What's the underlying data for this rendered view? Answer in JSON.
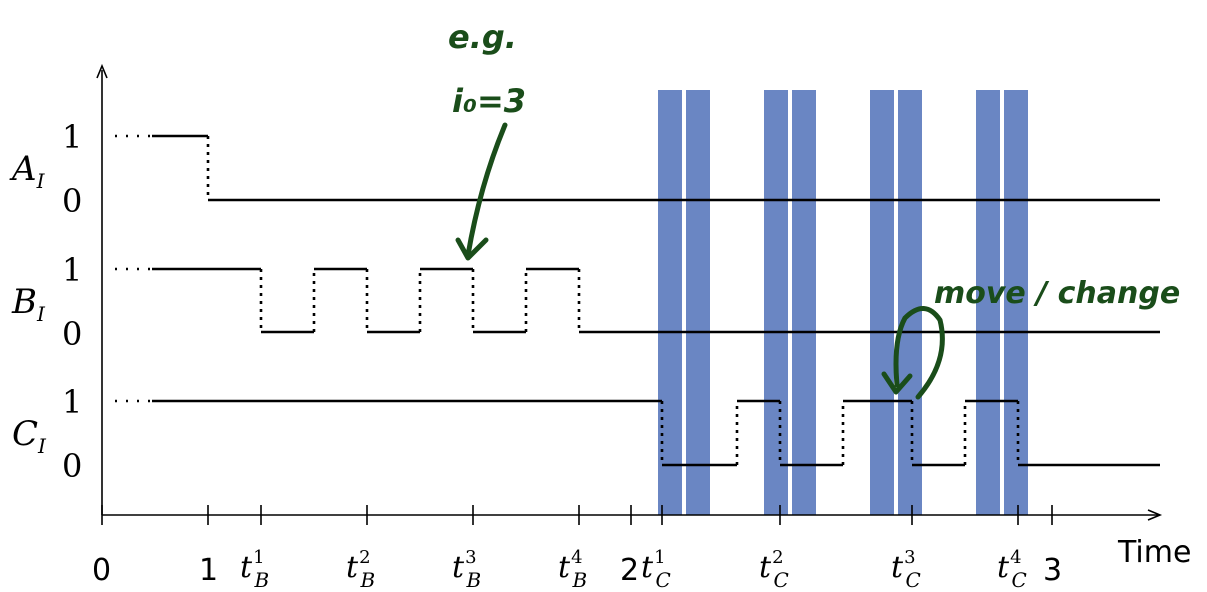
{
  "axis": {
    "x_label": "Time",
    "origin_label": "0",
    "tick_labels": [
      {
        "id": "one",
        "text": "1"
      },
      {
        "id": "tb1",
        "base": "t",
        "sub": "B",
        "sup": "1"
      },
      {
        "id": "tb2",
        "base": "t",
        "sub": "B",
        "sup": "2"
      },
      {
        "id": "tb3",
        "base": "t",
        "sub": "B",
        "sup": "3"
      },
      {
        "id": "tb4",
        "base": "t",
        "sub": "B",
        "sup": "4"
      },
      {
        "id": "two",
        "text": "2"
      },
      {
        "id": "tc1",
        "base": "t",
        "sub": "C",
        "sup": "1"
      },
      {
        "id": "tc2",
        "base": "t",
        "sub": "C",
        "sup": "2"
      },
      {
        "id": "tc3",
        "base": "t",
        "sub": "C",
        "sup": "3"
      },
      {
        "id": "tc4",
        "base": "t",
        "sub": "C",
        "sup": "4"
      },
      {
        "id": "three",
        "text": "3"
      }
    ]
  },
  "signals": [
    {
      "name": "A",
      "sub": "I",
      "high": "1",
      "low": "0"
    },
    {
      "name": "B",
      "sub": "I",
      "high": "1",
      "low": "0"
    },
    {
      "name": "C",
      "sub": "I",
      "high": "1",
      "low": "0"
    }
  ],
  "annotations": {
    "eg_line1": "e.g.",
    "eg_line2": "i₀=3",
    "move": "move / change"
  },
  "colors": {
    "line": "#000000",
    "band": "#6a86c3",
    "ink": "#1a4d1a"
  }
}
